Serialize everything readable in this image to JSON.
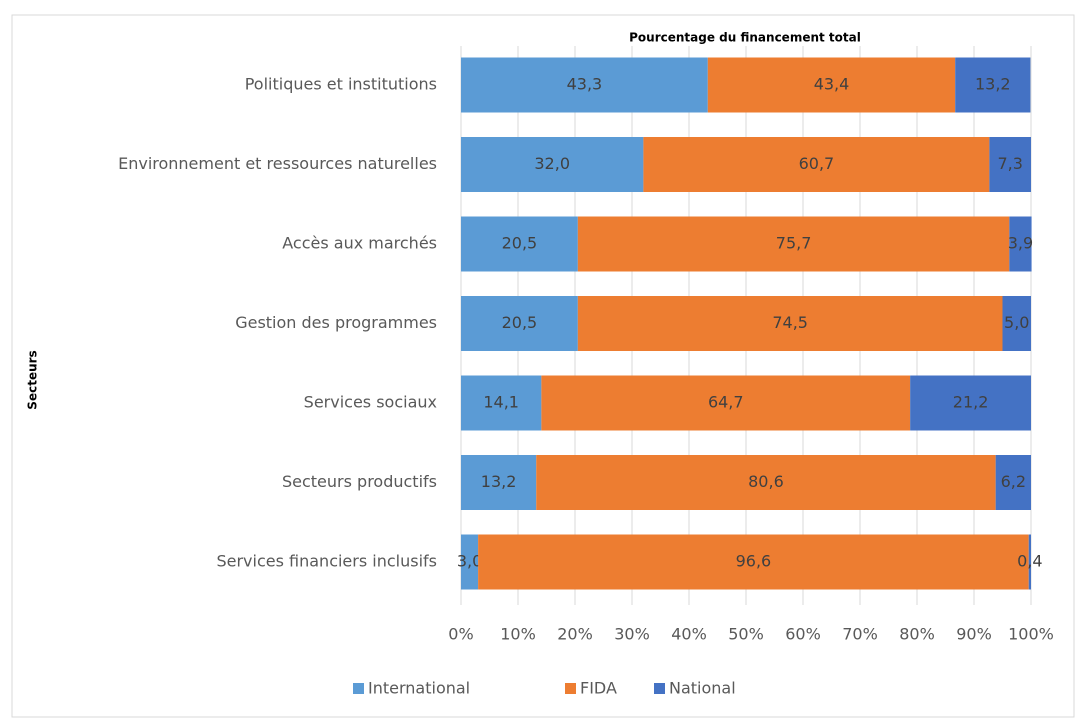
{
  "chart_data": {
    "type": "stacked_barh",
    "subtitle": "Pourcentage du financement total",
    "ylabel": "Secteurs",
    "categories": [
      "Politiques et institutions",
      "Environnement et ressources naturelles",
      "Accès aux marchés",
      "Gestion des programmes",
      "Services sociaux",
      "Secteurs productifs",
      "Services financiers inclusifs"
    ],
    "series": [
      {
        "name": "International",
        "color": "#5b9bd5",
        "values": [
          43.3,
          32.0,
          20.5,
          20.5,
          14.1,
          13.2,
          3.0
        ],
        "value_labels": [
          "43,3",
          "32,0",
          "20,5",
          "20,5",
          "14,1",
          "13,2",
          "3,0"
        ]
      },
      {
        "name": "FIDA",
        "color": "#ed7d31",
        "values": [
          43.4,
          60.7,
          75.7,
          74.5,
          64.7,
          80.6,
          96.6
        ],
        "value_labels": [
          "43,4",
          "60,7",
          "75,7",
          "74,5",
          "64,7",
          "80,6",
          "96,6"
        ]
      },
      {
        "name": "National",
        "color": "#4472c4",
        "values": [
          13.2,
          7.3,
          3.9,
          5.0,
          21.2,
          6.2,
          0.4
        ],
        "value_labels": [
          "13,2",
          "7,3",
          "3,9",
          "5,0",
          "21,2",
          "6,2",
          "0,4"
        ]
      }
    ],
    "xlim": [
      0,
      100
    ],
    "xticks": [
      {
        "value": 0,
        "label": "0%"
      },
      {
        "value": 10,
        "label": "10%"
      },
      {
        "value": 20,
        "label": "20%"
      },
      {
        "value": 30,
        "label": "30%"
      },
      {
        "value": 40,
        "label": "40%"
      },
      {
        "value": 50,
        "label": "50%"
      },
      {
        "value": 60,
        "label": "60%"
      },
      {
        "value": 70,
        "label": "70%"
      },
      {
        "value": 80,
        "label": "80%"
      },
      {
        "value": 90,
        "label": "90%"
      },
      {
        "value": 100,
        "label": "100%"
      }
    ],
    "grid": true,
    "legend": "bottom"
  }
}
